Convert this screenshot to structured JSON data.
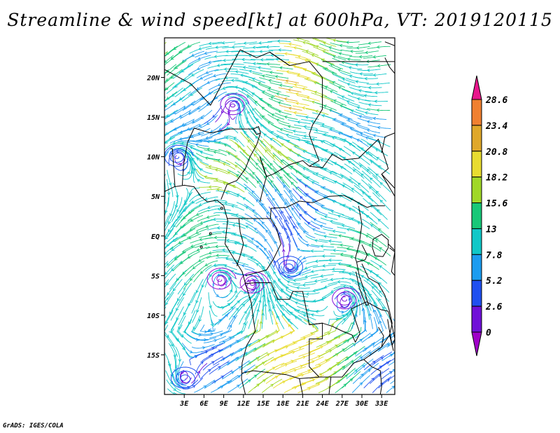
{
  "title": "Streamline & wind speed[kt] at 600hPa, VT: 2019120115",
  "credit": "GrADS: IGES/COLA",
  "map": {
    "lon_range": [
      0,
      35
    ],
    "lat_range": [
      -20,
      25
    ],
    "lat_ticks": [
      {
        "value": 20,
        "label": "20N"
      },
      {
        "value": 15,
        "label": "15N"
      },
      {
        "value": 10,
        "label": "10N"
      },
      {
        "value": 5,
        "label": "5N"
      },
      {
        "value": 0,
        "label": "EQ"
      },
      {
        "value": -5,
        "label": "5S"
      },
      {
        "value": -10,
        "label": "10S"
      },
      {
        "value": -15,
        "label": "15S"
      }
    ],
    "lon_ticks": [
      {
        "value": 3,
        "label": "3E"
      },
      {
        "value": 6,
        "label": "6E"
      },
      {
        "value": 9,
        "label": "9E"
      },
      {
        "value": 12,
        "label": "12E"
      },
      {
        "value": 15,
        "label": "15E"
      },
      {
        "value": 18,
        "label": "18E"
      },
      {
        "value": 21,
        "label": "21E"
      },
      {
        "value": 24,
        "label": "24E"
      },
      {
        "value": 27,
        "label": "27E"
      },
      {
        "value": 30,
        "label": "30E"
      },
      {
        "value": 33,
        "label": "33E"
      }
    ]
  },
  "colorbar": {
    "levels": [
      "28.6",
      "23.4",
      "20.8",
      "18.2",
      "15.6",
      "13",
      "7.8",
      "5.2",
      "2.6",
      "0"
    ],
    "colors": [
      "#e8168c",
      "#f08030",
      "#e0a82a",
      "#e8dc30",
      "#a0d828",
      "#18c878",
      "#10c8c8",
      "#1c9cf0",
      "#2050f0",
      "#7010d8",
      "#a000c8"
    ]
  },
  "vortices": [
    {
      "lon": 10.5,
      "lat": 16.5,
      "type": "cyclonic",
      "color": "#8010d8"
    },
    {
      "lon": 8.5,
      "lat": -5.5,
      "type": "cyclonic",
      "color": "#a010d0"
    },
    {
      "lon": 13.5,
      "lat": -6.0,
      "type": "cyclonic",
      "color": "#a010d0"
    },
    {
      "lon": 19.0,
      "lat": -4.0,
      "type": "anticyclonic",
      "color": "#2050f0"
    },
    {
      "lon": 27.5,
      "lat": -8.0,
      "type": "cyclonic",
      "color": "#8010d8"
    },
    {
      "lon": 3.0,
      "lat": -18.0,
      "type": "cyclonic",
      "color": "#2050f0"
    },
    {
      "lon": 2.0,
      "lat": 10.0,
      "type": "cyclonic",
      "color": "#2050f0"
    }
  ]
}
